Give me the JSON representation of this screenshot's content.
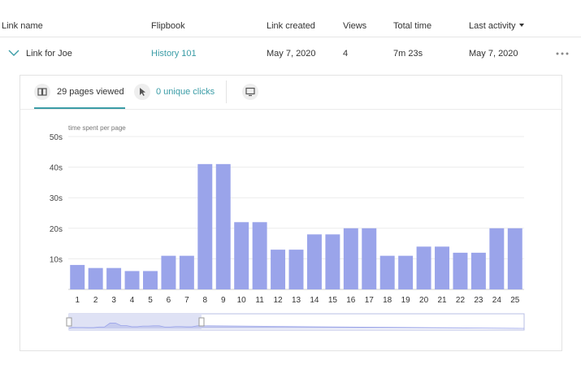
{
  "table": {
    "columns": {
      "link_name": "Link name",
      "flipbook": "Flipbook",
      "link_created": "Link created",
      "views": "Views",
      "total_time": "Total time",
      "last_activity": "Last activity"
    },
    "row": {
      "link_name": "Link for Joe",
      "flipbook": "History 101",
      "link_created": "May 7, 2020",
      "views": "4",
      "total_time": "7m 23s",
      "last_activity": "May 7, 2020"
    }
  },
  "tabs": {
    "pages_viewed": "29 pages viewed",
    "unique_clicks": "0 unique clicks"
  },
  "icons": {
    "expand": "chevron-down-icon",
    "more": "more-horizontal-icon",
    "pages": "pages-icon",
    "cursor": "cursor-icon",
    "screen": "monitor-icon"
  },
  "colors": {
    "accent": "#3a9ca6",
    "bar": "#9aa4ea"
  },
  "chart_data": {
    "type": "bar",
    "title": "time spent per page",
    "xlabel": "",
    "ylabel": "",
    "unit_suffix": "s",
    "ylim": [
      0,
      50
    ],
    "yticks": [
      10,
      20,
      30,
      40,
      50
    ],
    "grid": true,
    "categories": [
      "1",
      "2",
      "3",
      "4",
      "5",
      "6",
      "7",
      "8",
      "9",
      "10",
      "11",
      "12",
      "13",
      "14",
      "15",
      "16",
      "17",
      "18",
      "19",
      "20",
      "21",
      "22",
      "23",
      "24",
      "25"
    ],
    "values": [
      8,
      7,
      7,
      6,
      6,
      11,
      11,
      41,
      41,
      22,
      22,
      13,
      13,
      18,
      18,
      20,
      20,
      11,
      11,
      14,
      14,
      12,
      12,
      20,
      20
    ]
  }
}
